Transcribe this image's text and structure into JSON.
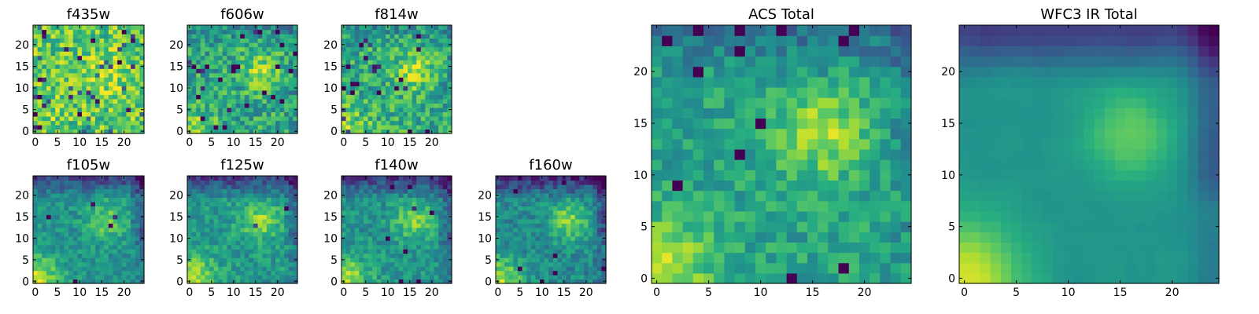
{
  "chart_data": {
    "type": "heatmap",
    "colormap": "viridis",
    "grid_size": 25,
    "panels": [
      {
        "title": "f435w",
        "xticks": [
          0,
          5,
          10,
          15,
          20
        ],
        "yticks": [
          0,
          5,
          10,
          15,
          20
        ],
        "xlim": [
          0,
          24
        ],
        "ylim": [
          0,
          24
        ],
        "params": {
          "seed": 11,
          "base": 0.74,
          "noise": 0.22,
          "blob": 0.18,
          "corner": 0.12,
          "top": 0.0,
          "right": 0.0,
          "outliers": 0.06
        }
      },
      {
        "title": "f606w",
        "xticks": [
          0,
          5,
          10,
          15,
          20
        ],
        "yticks": [
          0,
          5,
          10,
          15,
          20
        ],
        "xlim": [
          0,
          24
        ],
        "ylim": [
          0,
          24
        ],
        "params": {
          "seed": 23,
          "base": 0.6,
          "noise": 0.2,
          "blob": 0.26,
          "corner": 0.28,
          "top": 0.1,
          "right": 0.08,
          "outliers": 0.04
        }
      },
      {
        "title": "f814w",
        "xticks": [
          0,
          5,
          10,
          15,
          20
        ],
        "yticks": [
          0,
          5,
          10,
          15,
          20
        ],
        "xlim": [
          0,
          24
        ],
        "ylim": [
          0,
          24
        ],
        "params": {
          "seed": 37,
          "base": 0.62,
          "noise": 0.2,
          "blob": 0.26,
          "corner": 0.26,
          "top": 0.1,
          "right": 0.08,
          "outliers": 0.04
        }
      },
      {
        "title": "f105w",
        "xticks": [
          0,
          5,
          10,
          15,
          20
        ],
        "yticks": [
          0,
          5,
          10,
          15,
          20
        ],
        "xlim": [
          0,
          24
        ],
        "ylim": [
          0,
          24
        ],
        "params": {
          "seed": 41,
          "base": 0.52,
          "noise": 0.12,
          "blob": 0.26,
          "corner": 0.4,
          "top": 0.3,
          "right": 0.22,
          "outliers": 0.01
        }
      },
      {
        "title": "f125w",
        "xticks": [
          0,
          5,
          10,
          15,
          20
        ],
        "yticks": [
          0,
          5,
          10,
          15,
          20
        ],
        "xlim": [
          0,
          24
        ],
        "ylim": [
          0,
          24
        ],
        "params": {
          "seed": 53,
          "base": 0.54,
          "noise": 0.13,
          "blob": 0.3,
          "corner": 0.4,
          "top": 0.34,
          "right": 0.2,
          "outliers": 0.01
        }
      },
      {
        "title": "f140w",
        "xticks": [
          0,
          5,
          10,
          15,
          20
        ],
        "yticks": [
          0,
          5,
          10,
          15,
          20
        ],
        "xlim": [
          0,
          24
        ],
        "ylim": [
          0,
          24
        ],
        "params": {
          "seed": 67,
          "base": 0.52,
          "noise": 0.13,
          "blob": 0.28,
          "corner": 0.4,
          "top": 0.34,
          "right": 0.22,
          "outliers": 0.01
        }
      },
      {
        "title": "f160w",
        "xticks": [
          0,
          5,
          10,
          15,
          20
        ],
        "yticks": [
          0,
          5,
          10,
          15,
          20
        ],
        "xlim": [
          0,
          24
        ],
        "ylim": [
          0,
          24
        ],
        "params": {
          "seed": 79,
          "base": 0.48,
          "noise": 0.13,
          "blob": 0.34,
          "corner": 0.42,
          "top": 0.36,
          "right": 0.24,
          "outliers": 0.01
        }
      },
      {
        "title": "ACS Total",
        "xticks": [
          0,
          5,
          10,
          15,
          20
        ],
        "yticks": [
          0,
          5,
          10,
          15,
          20
        ],
        "xlim": [
          0,
          24
        ],
        "ylim": [
          0,
          24
        ],
        "params": {
          "seed": 97,
          "base": 0.58,
          "noise": 0.13,
          "blob": 0.3,
          "corner": 0.34,
          "top": 0.22,
          "right": 0.12,
          "outliers": 0.03
        }
      },
      {
        "title": "WFC3 IR Total",
        "xticks": [
          0,
          5,
          10,
          15,
          20
        ],
        "yticks": [
          0,
          5,
          10,
          15,
          20
        ],
        "xlim": [
          0,
          24
        ],
        "ylim": [
          0,
          24
        ],
        "params": {
          "seed": 131,
          "base": 0.52,
          "noise": 0.05,
          "blob": 0.26,
          "corner": 0.44,
          "top": 0.36,
          "right": 0.26,
          "outliers": 0.0
        }
      }
    ]
  }
}
